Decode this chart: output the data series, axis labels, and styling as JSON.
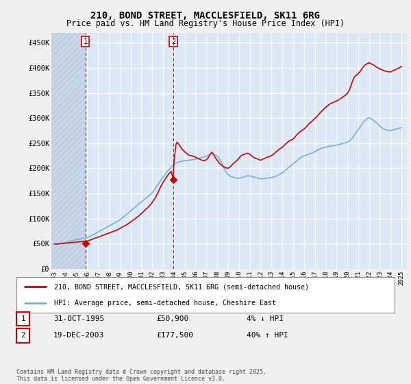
{
  "title_line1": "210, BOND STREET, MACCLESFIELD, SK11 6RG",
  "title_line2": "Price paid vs. HM Land Registry's House Price Index (HPI)",
  "title_fontsize": 10,
  "subtitle_fontsize": 8.5,
  "ylabel_ticks": [
    0,
    50000,
    100000,
    150000,
    200000,
    250000,
    300000,
    350000,
    400000,
    450000
  ],
  "ylabel_labels": [
    "£0",
    "£50K",
    "£100K",
    "£150K",
    "£200K",
    "£250K",
    "£300K",
    "£350K",
    "£400K",
    "£450K"
  ],
  "ylim": [
    0,
    470000
  ],
  "xlim_start": 1992.7,
  "xlim_end": 2025.5,
  "background_color": "#f0f0f0",
  "plot_bg_color": "#dce8f5",
  "hatch_bg_color": "#c8d8ea",
  "grid_color": "#ffffff",
  "red_line_color": "#cc0000",
  "blue_line_color": "#7ab0d4",
  "vline_color": "#cc0000",
  "marker1_year": 1995.833,
  "marker1_value": 50900,
  "marker2_year": 2003.962,
  "marker2_value": 177500,
  "legend_line1": "210, BOND STREET, MACCLESFIELD, SK11 6RG (semi-detached house)",
  "legend_line2": "HPI: Average price, semi-detached house, Cheshire East",
  "table_row1": [
    "1",
    "31-OCT-1995",
    "£50,900",
    "4% ↓ HPI"
  ],
  "table_row2": [
    "2",
    "19-DEC-2003",
    "£177,500",
    "40% ↑ HPI"
  ],
  "footer": "Contains HM Land Registry data © Crown copyright and database right 2025.\nThis data is licensed under the Open Government Licence v3.0.",
  "hpi_years": [
    1993.0,
    1993.08,
    1993.17,
    1993.25,
    1993.33,
    1993.42,
    1993.5,
    1993.58,
    1993.67,
    1993.75,
    1993.83,
    1993.92,
    1994.0,
    1994.08,
    1994.17,
    1994.25,
    1994.33,
    1994.42,
    1994.5,
    1994.58,
    1994.67,
    1994.75,
    1994.83,
    1994.92,
    1995.0,
    1995.08,
    1995.17,
    1995.25,
    1995.33,
    1995.42,
    1995.5,
    1995.58,
    1995.67,
    1995.75,
    1995.83,
    1995.92,
    1996.0,
    1996.08,
    1996.17,
    1996.25,
    1996.33,
    1996.42,
    1996.5,
    1996.58,
    1996.67,
    1996.75,
    1996.83,
    1996.92,
    1997.0,
    1997.17,
    1997.33,
    1997.5,
    1997.67,
    1997.83,
    1998.0,
    1998.17,
    1998.33,
    1998.5,
    1998.67,
    1998.83,
    1999.0,
    1999.17,
    1999.33,
    1999.5,
    1999.67,
    1999.83,
    2000.0,
    2000.17,
    2000.33,
    2000.5,
    2000.67,
    2000.83,
    2001.0,
    2001.17,
    2001.33,
    2001.5,
    2001.67,
    2001.83,
    2002.0,
    2002.17,
    2002.33,
    2002.5,
    2002.67,
    2002.83,
    2003.0,
    2003.17,
    2003.33,
    2003.5,
    2003.67,
    2003.83,
    2004.0,
    2004.17,
    2004.33,
    2004.5,
    2004.67,
    2004.83,
    2005.0,
    2005.17,
    2005.33,
    2005.5,
    2005.67,
    2005.83,
    2006.0,
    2006.17,
    2006.33,
    2006.5,
    2006.67,
    2006.83,
    2007.0,
    2007.17,
    2007.33,
    2007.5,
    2007.67,
    2007.83,
    2008.0,
    2008.17,
    2008.33,
    2008.5,
    2008.67,
    2008.83,
    2009.0,
    2009.17,
    2009.33,
    2009.5,
    2009.67,
    2009.83,
    2010.0,
    2010.17,
    2010.33,
    2010.5,
    2010.67,
    2010.83,
    2011.0,
    2011.17,
    2011.33,
    2011.5,
    2011.67,
    2011.83,
    2012.0,
    2012.17,
    2012.33,
    2012.5,
    2012.67,
    2012.83,
    2013.0,
    2013.17,
    2013.33,
    2013.5,
    2013.67,
    2013.83,
    2014.0,
    2014.17,
    2014.33,
    2014.5,
    2014.67,
    2014.83,
    2015.0,
    2015.17,
    2015.33,
    2015.5,
    2015.67,
    2015.83,
    2016.0,
    2016.17,
    2016.33,
    2016.5,
    2016.67,
    2016.83,
    2017.0,
    2017.17,
    2017.33,
    2017.5,
    2017.67,
    2017.83,
    2018.0,
    2018.17,
    2018.33,
    2018.5,
    2018.67,
    2018.83,
    2019.0,
    2019.17,
    2019.33,
    2019.5,
    2019.67,
    2019.83,
    2020.0,
    2020.17,
    2020.33,
    2020.5,
    2020.67,
    2020.83,
    2021.0,
    2021.17,
    2021.33,
    2021.5,
    2021.67,
    2021.83,
    2022.0,
    2022.17,
    2022.33,
    2022.5,
    2022.67,
    2022.83,
    2023.0,
    2023.17,
    2023.33,
    2023.5,
    2023.67,
    2023.83,
    2024.0,
    2024.17,
    2024.33,
    2024.5,
    2024.67,
    2024.83,
    2025.0
  ],
  "hpi_values": [
    49000,
    49200,
    49500,
    49800,
    50000,
    50200,
    50500,
    50700,
    51000,
    51200,
    51500,
    51800,
    52000,
    52500,
    53000,
    53500,
    54000,
    54500,
    55000,
    55500,
    56000,
    56500,
    57000,
    57500,
    58000,
    58500,
    59000,
    59200,
    59500,
    59800,
    60000,
    60200,
    60500,
    60800,
    61000,
    61500,
    62000,
    62500,
    63500,
    64500,
    65500,
    66500,
    67500,
    68000,
    69000,
    70000,
    71000,
    72000,
    73000,
    75000,
    77000,
    79000,
    81000,
    83000,
    85000,
    87000,
    89000,
    91000,
    93000,
    95000,
    97000,
    100000,
    103000,
    106000,
    109000,
    112000,
    115000,
    118000,
    121000,
    124000,
    127000,
    130000,
    133000,
    136000,
    139000,
    142000,
    145000,
    148000,
    151000,
    156000,
    161000,
    167000,
    172000,
    177000,
    182000,
    187000,
    192000,
    196000,
    200000,
    204000,
    208000,
    210000,
    212000,
    213000,
    214000,
    214500,
    215000,
    215500,
    216000,
    216500,
    217000,
    217500,
    218000,
    219000,
    220000,
    221000,
    222000,
    223000,
    224000,
    226000,
    228000,
    229000,
    228000,
    226000,
    224000,
    220000,
    214000,
    206000,
    198000,
    192000,
    188000,
    185000,
    183000,
    182000,
    181000,
    180000,
    180000,
    181000,
    182000,
    183000,
    184000,
    185000,
    185000,
    184000,
    183000,
    182000,
    181000,
    180000,
    179000,
    179000,
    179500,
    180000,
    180500,
    181000,
    181500,
    182500,
    183500,
    185000,
    187000,
    189000,
    191000,
    194000,
    197000,
    200000,
    203000,
    206000,
    209000,
    212000,
    215000,
    218000,
    221000,
    223000,
    225000,
    226000,
    227000,
    228000,
    230000,
    231000,
    233000,
    235000,
    237000,
    239000,
    240000,
    241000,
    242000,
    243000,
    244000,
    244500,
    245000,
    245500,
    246000,
    247000,
    248000,
    249000,
    250000,
    251000,
    252000,
    254000,
    257000,
    261000,
    267000,
    272000,
    277000,
    282000,
    287000,
    292000,
    296000,
    299000,
    300000,
    299000,
    297000,
    294000,
    291000,
    288000,
    284000,
    281000,
    279000,
    277000,
    276000,
    275000,
    275000,
    276000,
    277000,
    278000,
    279000,
    280000,
    281000
  ],
  "price_years": [
    1993.0,
    1993.25,
    1993.5,
    1993.75,
    1994.0,
    1994.25,
    1994.5,
    1994.75,
    1995.0,
    1995.25,
    1995.5,
    1995.75,
    1995.833,
    1996.0,
    1996.25,
    1996.5,
    1996.75,
    1997.0,
    1997.25,
    1997.5,
    1997.75,
    1998.0,
    1998.25,
    1998.5,
    1998.75,
    1999.0,
    1999.25,
    1999.5,
    1999.75,
    2000.0,
    2000.25,
    2000.5,
    2000.75,
    2001.0,
    2001.25,
    2001.5,
    2001.75,
    2002.0,
    2002.25,
    2002.5,
    2002.75,
    2003.0,
    2003.25,
    2003.5,
    2003.75,
    2003.962,
    2004.0,
    2004.1,
    2004.2,
    2004.3,
    2004.4,
    2004.5,
    2004.6,
    2004.7,
    2004.8,
    2004.9,
    2005.0,
    2005.1,
    2005.2,
    2005.4,
    2005.6,
    2005.8,
    2006.0,
    2006.2,
    2006.4,
    2006.6,
    2006.8,
    2007.0,
    2007.2,
    2007.35,
    2007.5,
    2007.65,
    2007.8,
    2008.0,
    2008.2,
    2008.4,
    2008.6,
    2008.8,
    2009.0,
    2009.2,
    2009.5,
    2009.8,
    2010.0,
    2010.2,
    2010.5,
    2010.8,
    2011.0,
    2011.2,
    2011.5,
    2011.8,
    2012.0,
    2012.3,
    2012.6,
    2013.0,
    2013.3,
    2013.6,
    2014.0,
    2014.3,
    2014.6,
    2015.0,
    2015.2,
    2015.4,
    2015.6,
    2015.8,
    2016.0,
    2016.2,
    2016.4,
    2016.6,
    2016.8,
    2017.0,
    2017.2,
    2017.4,
    2017.6,
    2017.8,
    2018.0,
    2018.2,
    2018.4,
    2018.6,
    2018.8,
    2019.0,
    2019.2,
    2019.4,
    2019.6,
    2019.8,
    2020.0,
    2020.2,
    2020.4,
    2020.6,
    2020.8,
    2021.0,
    2021.2,
    2021.4,
    2021.6,
    2021.8,
    2022.0,
    2022.2,
    2022.4,
    2022.6,
    2022.8,
    2023.0,
    2023.2,
    2023.4,
    2023.6,
    2023.8,
    2024.0,
    2024.2,
    2024.4,
    2024.6,
    2024.8,
    2025.0
  ],
  "price_values": [
    49000,
    49500,
    50000,
    50500,
    51000,
    51500,
    52000,
    52500,
    53000,
    53500,
    54000,
    54500,
    50900,
    55000,
    57000,
    59000,
    61000,
    63000,
    65000,
    67000,
    69000,
    71000,
    73000,
    75000,
    77000,
    80000,
    83000,
    86000,
    89000,
    93000,
    97000,
    101000,
    105000,
    110000,
    115000,
    120000,
    125000,
    132000,
    140000,
    150000,
    162000,
    172000,
    180000,
    188000,
    194000,
    177500,
    210000,
    230000,
    248000,
    252000,
    249000,
    247000,
    243000,
    240000,
    237000,
    235000,
    233000,
    231000,
    229000,
    226000,
    225000,
    224000,
    222000,
    220000,
    218000,
    216000,
    215000,
    217000,
    222000,
    228000,
    232000,
    228000,
    222000,
    216000,
    210000,
    206000,
    203000,
    201000,
    200000,
    203000,
    210000,
    215000,
    220000,
    225000,
    228000,
    230000,
    228000,
    224000,
    220000,
    218000,
    216000,
    219000,
    222000,
    225000,
    230000,
    236000,
    242000,
    248000,
    254000,
    258000,
    263000,
    268000,
    272000,
    275000,
    278000,
    282000,
    287000,
    291000,
    295000,
    299000,
    303000,
    308000,
    313000,
    317000,
    321000,
    325000,
    328000,
    330000,
    332000,
    334000,
    336000,
    339000,
    342000,
    345000,
    349000,
    356000,
    368000,
    380000,
    385000,
    388000,
    393000,
    400000,
    405000,
    408000,
    410000,
    408000,
    406000,
    403000,
    400000,
    398000,
    396000,
    394000,
    393000,
    392000,
    392000,
    394000,
    396000,
    398000,
    400000,
    403000
  ],
  "xtick_years": [
    1993,
    1994,
    1995,
    1996,
    1997,
    1998,
    1999,
    2000,
    2001,
    2002,
    2003,
    2004,
    2005,
    2006,
    2007,
    2008,
    2009,
    2010,
    2011,
    2012,
    2013,
    2014,
    2015,
    2016,
    2017,
    2018,
    2019,
    2020,
    2021,
    2022,
    2023,
    2024,
    2025
  ]
}
